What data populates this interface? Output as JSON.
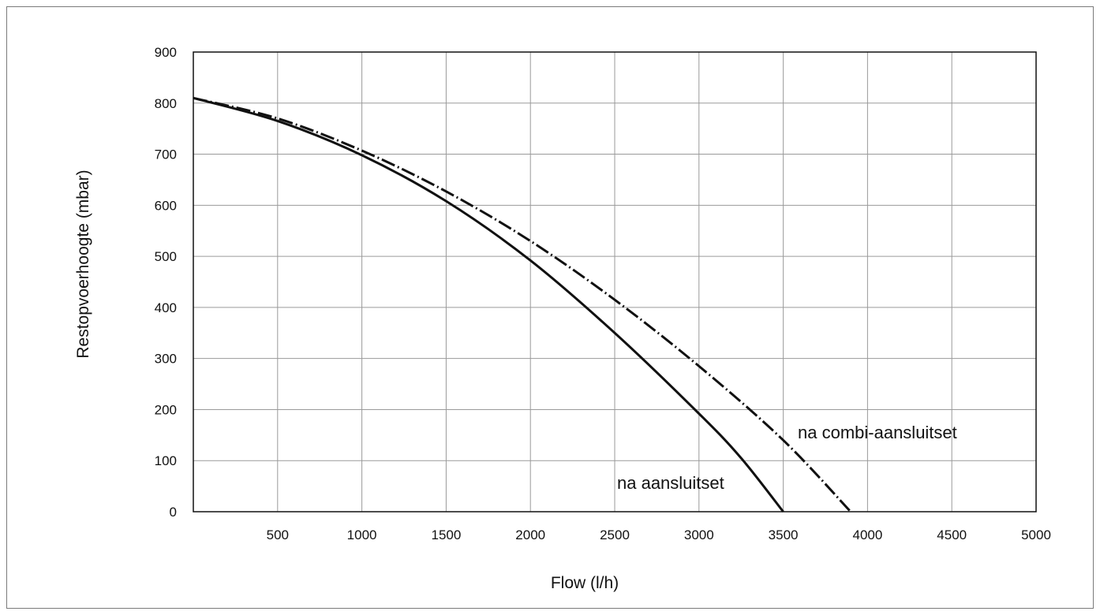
{
  "chart_data": {
    "type": "line",
    "xlabel": "Flow (l/h)",
    "ylabel": "Restopvoerhoogte (mbar)",
    "xlim": [
      0,
      5000
    ],
    "ylim": [
      0,
      900
    ],
    "x_ticks": [
      "500",
      "1000",
      "1500",
      "2000",
      "2500",
      "3000",
      "3500",
      "4000",
      "4500",
      "5000"
    ],
    "y_ticks": [
      "0",
      "100",
      "200",
      "300",
      "400",
      "500",
      "600",
      "700",
      "800",
      "900"
    ],
    "grid": true,
    "series": [
      {
        "name": "na aansluitset",
        "style": "solid",
        "points": [
          [
            0,
            810
          ],
          [
            500,
            765
          ],
          [
            1000,
            698
          ],
          [
            1500,
            608
          ],
          [
            2000,
            492
          ],
          [
            2500,
            350
          ],
          [
            3000,
            192
          ],
          [
            3250,
            105
          ],
          [
            3500,
            0
          ]
        ]
      },
      {
        "name": "na combi-aansluitset",
        "style": "dash-dot",
        "points": [
          [
            0,
            810
          ],
          [
            500,
            770
          ],
          [
            1000,
            707
          ],
          [
            1500,
            627
          ],
          [
            2000,
            530
          ],
          [
            2500,
            415
          ],
          [
            3000,
            285
          ],
          [
            3500,
            140
          ],
          [
            3900,
            0
          ]
        ]
      }
    ],
    "annotations": [
      {
        "text": "na aansluitset",
        "series": 0
      },
      {
        "text": "na combi-aansluitset",
        "series": 1
      }
    ]
  }
}
